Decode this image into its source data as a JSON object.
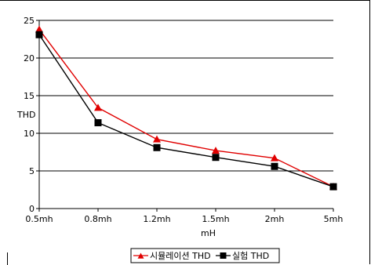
{
  "chart_data": {
    "type": "line",
    "categories": [
      "0.5mh",
      "0.8mh",
      "1.2mh",
      "1.5mh",
      "2mh",
      "5mh"
    ],
    "series": [
      {
        "name": "시뮬레이션 THD",
        "values": [
          23.8,
          13.4,
          9.2,
          7.7,
          6.7,
          2.9
        ],
        "color": "#e00000",
        "marker": "triangle"
      },
      {
        "name": "실험 THD",
        "values": [
          23.1,
          11.4,
          8.1,
          6.8,
          5.6,
          2.9
        ],
        "color": "#000000",
        "marker": "square"
      }
    ],
    "xlabel": "mH",
    "ylabel": "THD",
    "ylim": [
      0,
      25
    ],
    "yticks": [
      0,
      5,
      10,
      15,
      20,
      25
    ],
    "grid": true,
    "legend_position": "bottom"
  }
}
